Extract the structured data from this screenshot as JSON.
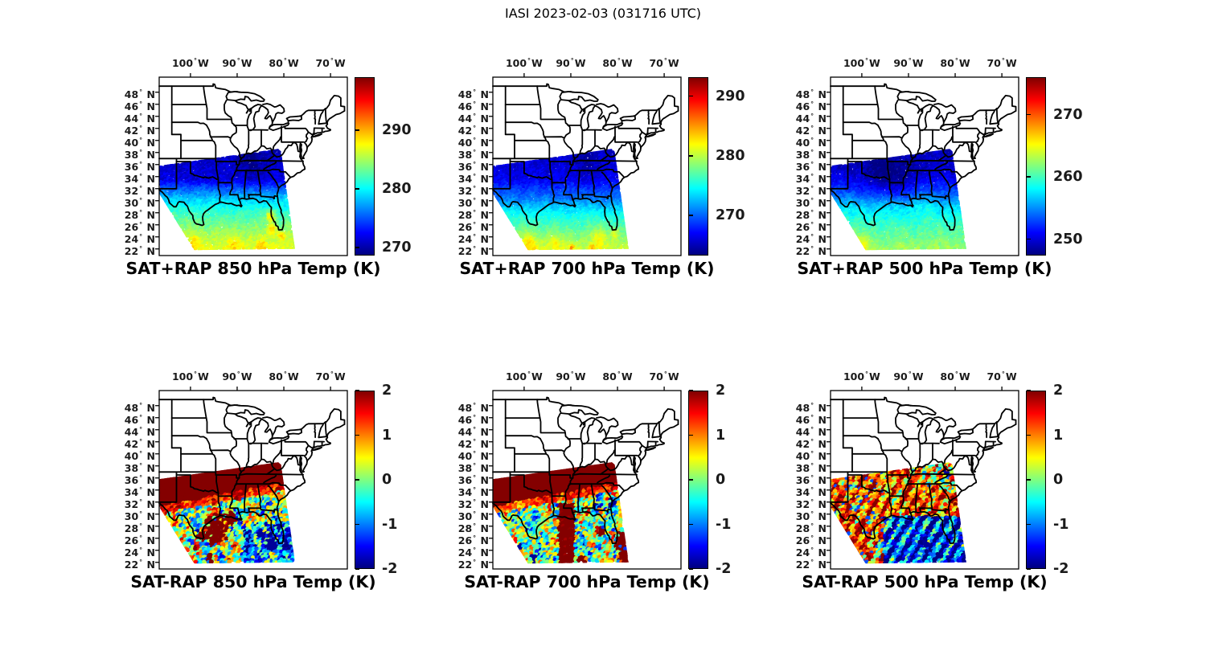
{
  "figure": {
    "title": "IASI 2023-02-03 (031716 UTC)",
    "background": "#ffffff"
  },
  "axes": {
    "lon_ticks": [
      100,
      90,
      80,
      70
    ],
    "lon_hemisphere": "W",
    "lat_ticks": [
      48,
      46,
      44,
      42,
      40,
      38,
      36,
      34,
      32,
      30,
      28,
      26,
      24,
      22
    ],
    "lat_hemisphere": "N",
    "degree": "°"
  },
  "colormap": {
    "name": "jet",
    "stops_bottom_to_top": [
      "#000080",
      "#0000ff",
      "#00ffff",
      "#ffff00",
      "#ff0000",
      "#800000"
    ]
  },
  "map_extent": {
    "lon_min": -106.7,
    "lon_max": -66.4,
    "lat_min": 20.9,
    "lat_max": 50.5
  },
  "chart_data": {
    "type": "heatmap",
    "projection": "equirectangular",
    "region": "central and eastern United States",
    "swath_polygon": [
      [
        -106.7,
        35.8
      ],
      [
        -81.2,
        38.6
      ],
      [
        -80.6,
        38.2
      ],
      [
        -77.6,
        22.0
      ],
      [
        -99.2,
        21.8
      ],
      [
        -106.7,
        31.2
      ]
    ],
    "panels": [
      {
        "title": "SAT+RAP 850 hPa Temp (K)",
        "quantity": "temperature",
        "units": "K",
        "colorbar": {
          "min": 268.7,
          "max": 299.0,
          "ticks": [
            290,
            280,
            270
          ]
        },
        "field": {
          "kind": "absolute",
          "noise": 1.0,
          "lat_profile": [
            [
              22,
              287
            ],
            [
              24,
              285.5
            ],
            [
              26,
              283.5
            ],
            [
              28,
              281.5
            ],
            [
              30,
              279
            ],
            [
              32,
              275
            ],
            [
              33.5,
              271.5
            ],
            [
              39,
              270.5
            ]
          ],
          "spots": [
            [
              -82.9,
              27.4,
              1.0,
              6
            ],
            [
              -82.3,
              25.2,
              0.9,
              5
            ],
            [
              -84.8,
              22.5,
              1.0,
              3
            ],
            [
              -90.5,
              22.6,
              1.2,
              2
            ],
            [
              -99.5,
              23.0,
              1.5,
              2
            ],
            [
              -86.5,
              37.0,
              3.0,
              -2
            ],
            [
              -80.3,
              24.0,
              0.8,
              4
            ]
          ]
        }
      },
      {
        "title": "SAT+RAP 700 hPa Temp (K)",
        "quantity": "temperature",
        "units": "K",
        "colorbar": {
          "min": 263.3,
          "max": 293.2,
          "ticks": [
            290,
            280,
            270
          ]
        },
        "field": {
          "kind": "absolute",
          "noise": 0.9,
          "lat_profile": [
            [
              22,
              280.5
            ],
            [
              24,
              278.5
            ],
            [
              26,
              276.5
            ],
            [
              28,
              274.5
            ],
            [
              30,
              271
            ],
            [
              32,
              268.5
            ],
            [
              33.5,
              266.5
            ],
            [
              39,
              265.5
            ]
          ],
          "spots": [
            [
              -99,
              22.8,
              2.0,
              3
            ],
            [
              -93.5,
              23.0,
              1.3,
              2.5
            ],
            [
              -84,
              23.8,
              1.8,
              2.5
            ],
            [
              -89.8,
              22.2,
              0.5,
              6
            ],
            [
              -85.4,
              22.1,
              0.5,
              5
            ],
            [
              -80.6,
              24.6,
              1.0,
              3
            ],
            [
              -86.5,
              36.8,
              3.0,
              -1.5
            ]
          ]
        }
      },
      {
        "title": "SAT+RAP 500 hPa Temp (K)",
        "quantity": "temperature",
        "units": "K",
        "colorbar": {
          "min": 247.4,
          "max": 276.0,
          "ticks": [
            270,
            260,
            250
          ]
        },
        "field": {
          "kind": "absolute",
          "noise": 0.9,
          "lat_profile": [
            [
              22,
              262.5
            ],
            [
              25,
              260.5
            ],
            [
              27,
              259
            ],
            [
              29,
              257
            ],
            [
              31,
              253.5
            ],
            [
              33,
              251
            ],
            [
              35,
              249.5
            ],
            [
              39,
              249
            ]
          ],
          "spots": [
            [
              -102.5,
              23.3,
              1.8,
              3
            ],
            [
              -99.8,
              22.4,
              1.5,
              3
            ],
            [
              -105,
              26,
              1.3,
              1.5
            ],
            [
              -96,
              34,
              3.5,
              -2.5
            ],
            [
              -91,
              33.5,
              3.0,
              -2
            ],
            [
              -86,
              30,
              2.5,
              1.0
            ]
          ]
        }
      },
      {
        "title": "SAT-RAP 850 hPa Temp (K)",
        "quantity": "temperature difference",
        "units": "K",
        "colorbar": {
          "min": -2,
          "max": 2,
          "ticks": [
            2,
            1,
            0,
            -1,
            -2
          ]
        },
        "field": {
          "kind": "difference",
          "noise": 1.5,
          "southeast_cool": true,
          "saturated_band": {
            "lat_at_west": 31.2,
            "slope": 0.145
          },
          "red_blobs": [
            [
              -94.4,
              27.3,
              2.7
            ],
            [
              -91.3,
              29.4,
              1.4
            ],
            [
              -97.4,
              26.3,
              1.2
            ],
            [
              -95.9,
              22.6,
              0.7
            ],
            [
              -99,
              24.4,
              0.5
            ]
          ],
          "cool_blobs": [
            [
              -82.4,
              24.6,
              1.5
            ],
            [
              -84.8,
              26.6,
              1.1
            ],
            [
              -80.6,
              27.9,
              0.8
            ]
          ]
        }
      },
      {
        "title": "SAT-RAP 700 hPa Temp (K)",
        "quantity": "temperature difference",
        "units": "K",
        "colorbar": {
          "min": -2,
          "max": 2,
          "ticks": [
            2,
            1,
            0,
            -1,
            -2
          ]
        },
        "field": {
          "kind": "difference",
          "noise": 1.4,
          "west_mix": true,
          "saturated_band": {
            "lat_at_west": 31.2,
            "slope": 0.145
          },
          "red_column": {
            "lon": -90.8,
            "halfw": 1.8,
            "top": 31.6
          },
          "red_blobs": [
            [
              -79.2,
              25.4,
              1.7
            ],
            [
              -78.4,
              23.0,
              1.3
            ],
            [
              -83.4,
              27.1,
              0.9
            ],
            [
              -87.8,
              22.4,
              1.0
            ]
          ],
          "cool_blobs": [
            [
              -81.0,
              31.8,
              0.9
            ],
            [
              -84.6,
              31.4,
              0.7
            ],
            [
              -101.5,
              24.2,
              1.1
            ],
            [
              -97.8,
              22.4,
              0.9
            ]
          ]
        }
      },
      {
        "title": "SAT-RAP 500 hPa Temp (K)",
        "quantity": "temperature difference",
        "units": "K",
        "colorbar": {
          "min": -2,
          "max": 2,
          "ticks": [
            2,
            1,
            0,
            -1,
            -2
          ]
        },
        "field": {
          "kind": "difference",
          "noise": 1.0,
          "stripes": {
            "u0": 142,
            "k": 1.75,
            "axis": 1.33
          },
          "blue_region": {
            "lon_min": -95.3,
            "lat_max": 29.6
          },
          "tip_mix": {
            "lat_min": 33.5,
            "lon_min": -86.5
          },
          "cool_blobs": [
            [
              -81.6,
              36.6,
              0.9
            ],
            [
              -86.2,
              25.0,
              1.0
            ]
          ],
          "red_blobs": []
        }
      }
    ]
  }
}
